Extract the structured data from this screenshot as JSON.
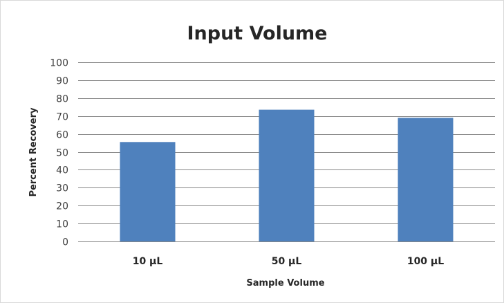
{
  "chart_data": {
    "type": "bar",
    "title": "Input Volume",
    "xlabel": "Sample Volume",
    "ylabel": "Percent Recovery",
    "categories": [
      "10 µL",
      "50 µL",
      "100 µL"
    ],
    "values": [
      55.5,
      73.5,
      69
    ],
    "ylim": [
      0,
      100
    ],
    "yticks": [
      0,
      10,
      20,
      30,
      40,
      50,
      60,
      70,
      80,
      90,
      100
    ],
    "grid": true,
    "legend": "none",
    "bar_color": "#4f81bd",
    "grid_color": "#868686"
  }
}
